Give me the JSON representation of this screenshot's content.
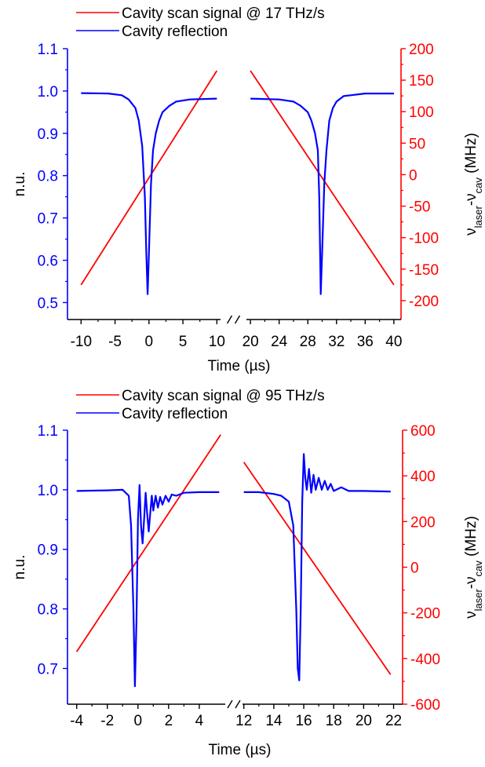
{
  "colors": {
    "signal": "#ff0000",
    "reflection": "#0000ff",
    "axis": "#000000"
  },
  "chart_data": [
    {
      "type": "line",
      "legend": {
        "placement": "top",
        "entries": [
          "Cavity scan signal @ 17 THz/s",
          "Cavity reflection"
        ]
      },
      "xlabel": "Time (µs)",
      "xlabel_parts": [
        "Time (",
        "µ",
        "s)"
      ],
      "ylabel": "n.u.",
      "y2label_parts": [
        "ν",
        "laser",
        "-ν",
        "cav",
        " (MHz)"
      ],
      "x_axis_break": true,
      "x_segments": [
        {
          "xlim": [
            -12,
            11
          ],
          "ticks": [
            -10,
            -5,
            0,
            5,
            10
          ]
        },
        {
          "xlim": [
            19,
            41
          ],
          "ticks": [
            20,
            24,
            28,
            32,
            36,
            40
          ]
        }
      ],
      "ylim": [
        0.46,
        1.1
      ],
      "yticks": [
        0.5,
        0.6,
        0.7,
        0.8,
        0.9,
        1.0,
        1.1
      ],
      "y2lim": [
        -230,
        200
      ],
      "y2ticks": [
        -200,
        -150,
        -100,
        -50,
        0,
        50,
        100,
        150,
        200
      ],
      "series": [
        {
          "name": "Cavity scan signal @ 17 THz/s",
          "axis": "right",
          "segments": [
            {
              "x": [
                -10,
                10
              ],
              "y": [
                -175,
                165
              ]
            },
            {
              "x": [
                20,
                40
              ],
              "y": [
                165,
                -175
              ]
            }
          ]
        },
        {
          "name": "Cavity reflection",
          "axis": "left",
          "segments": [
            {
              "x": [
                -10,
                -6,
                -4,
                -3,
                -2,
                -1.5,
                -1,
                -0.6,
                -0.4,
                -0.2,
                0,
                0.3,
                0.6,
                1,
                1.5,
                2,
                3,
                4,
                6,
                10
              ],
              "y": [
                0.995,
                0.994,
                0.99,
                0.98,
                0.96,
                0.93,
                0.87,
                0.75,
                0.62,
                0.52,
                0.62,
                0.78,
                0.86,
                0.9,
                0.93,
                0.95,
                0.965,
                0.975,
                0.98,
                0.982
              ]
            },
            {
              "x": [
                20,
                24,
                26,
                27,
                28,
                28.5,
                29,
                29.4,
                29.6,
                29.8,
                30,
                30.3,
                30.6,
                31,
                31.5,
                32,
                33,
                34,
                36,
                40
              ],
              "y": [
                0.982,
                0.98,
                0.975,
                0.965,
                0.95,
                0.93,
                0.9,
                0.86,
                0.75,
                0.52,
                0.62,
                0.78,
                0.86,
                0.93,
                0.96,
                0.975,
                0.988,
                0.99,
                0.994,
                0.994
              ]
            }
          ]
        }
      ]
    },
    {
      "type": "line",
      "legend": {
        "placement": "top",
        "entries": [
          "Cavity scan signal @ 95 THz/s",
          "Cavity reflection"
        ]
      },
      "xlabel": "Time (µs)",
      "xlabel_parts": [
        "Time (",
        "µ",
        "s)"
      ],
      "ylabel": "n.u.",
      "y2label_parts": [
        "ν",
        "laser",
        "-ν",
        "cav",
        " (MHz)"
      ],
      "x_axis_break": true,
      "x_segments": [
        {
          "xlim": [
            -4.6,
            5.9
          ],
          "ticks": [
            -4,
            -2,
            0,
            2,
            4
          ]
        },
        {
          "xlim": [
            11.7,
            22.6
          ],
          "ticks": [
            12,
            14,
            16,
            18,
            20,
            22
          ]
        }
      ],
      "ylim": [
        0.64,
        1.1
      ],
      "yticks": [
        0.7,
        0.8,
        0.9,
        1.0,
        1.1
      ],
      "y2lim": [
        -600,
        600
      ],
      "y2ticks": [
        -600,
        -400,
        -200,
        0,
        200,
        400,
        600
      ],
      "series": [
        {
          "name": "Cavity scan signal @ 95 THz/s",
          "axis": "right",
          "segments": [
            {
              "x": [
                -4,
                5.4
              ],
              "y": [
                -370,
                580
              ]
            },
            {
              "x": [
                12,
                21.8
              ],
              "y": [
                460,
                -470
              ]
            }
          ]
        },
        {
          "name": "Cavity reflection",
          "axis": "left",
          "segments": [
            {
              "x": [
                -4,
                -2,
                -1,
                -0.6,
                -0.45,
                -0.3,
                -0.2,
                -0.1,
                0,
                0.1,
                0.2,
                0.3,
                0.4,
                0.5,
                0.6,
                0.7,
                0.8,
                0.9,
                1.0,
                1.15,
                1.3,
                1.45,
                1.6,
                1.8,
                2.0,
                2.2,
                2.5,
                3,
                4,
                5.3
              ],
              "y": [
                0.998,
                0.999,
                1.0,
                0.99,
                0.94,
                0.8,
                0.67,
                0.78,
                0.95,
                1.008,
                0.94,
                0.91,
                0.95,
                0.995,
                0.96,
                0.93,
                0.96,
                0.99,
                0.965,
                0.99,
                0.97,
                0.988,
                0.975,
                0.99,
                0.98,
                0.992,
                0.99,
                0.995,
                0.996,
                0.996
              ]
            },
            {
              "x": [
                12,
                13,
                14,
                14.5,
                15,
                15.3,
                15.5,
                15.6,
                15.7,
                15.8,
                15.9,
                16.0,
                16.1,
                16.2,
                16.35,
                16.5,
                16.65,
                16.8,
                17.0,
                17.2,
                17.4,
                17.6,
                17.8,
                18,
                18.5,
                19,
                20,
                21.8
              ],
              "y": [
                0.996,
                0.996,
                0.993,
                0.99,
                0.98,
                0.94,
                0.8,
                0.7,
                0.68,
                0.8,
                0.98,
                1.06,
                1.02,
                1.0,
                1.035,
                0.995,
                1.025,
                1.0,
                1.02,
                1.0,
                1.015,
                1.0,
                1.01,
                0.998,
                1.004,
                0.998,
                0.998,
                0.997
              ]
            }
          ]
        }
      ]
    }
  ]
}
